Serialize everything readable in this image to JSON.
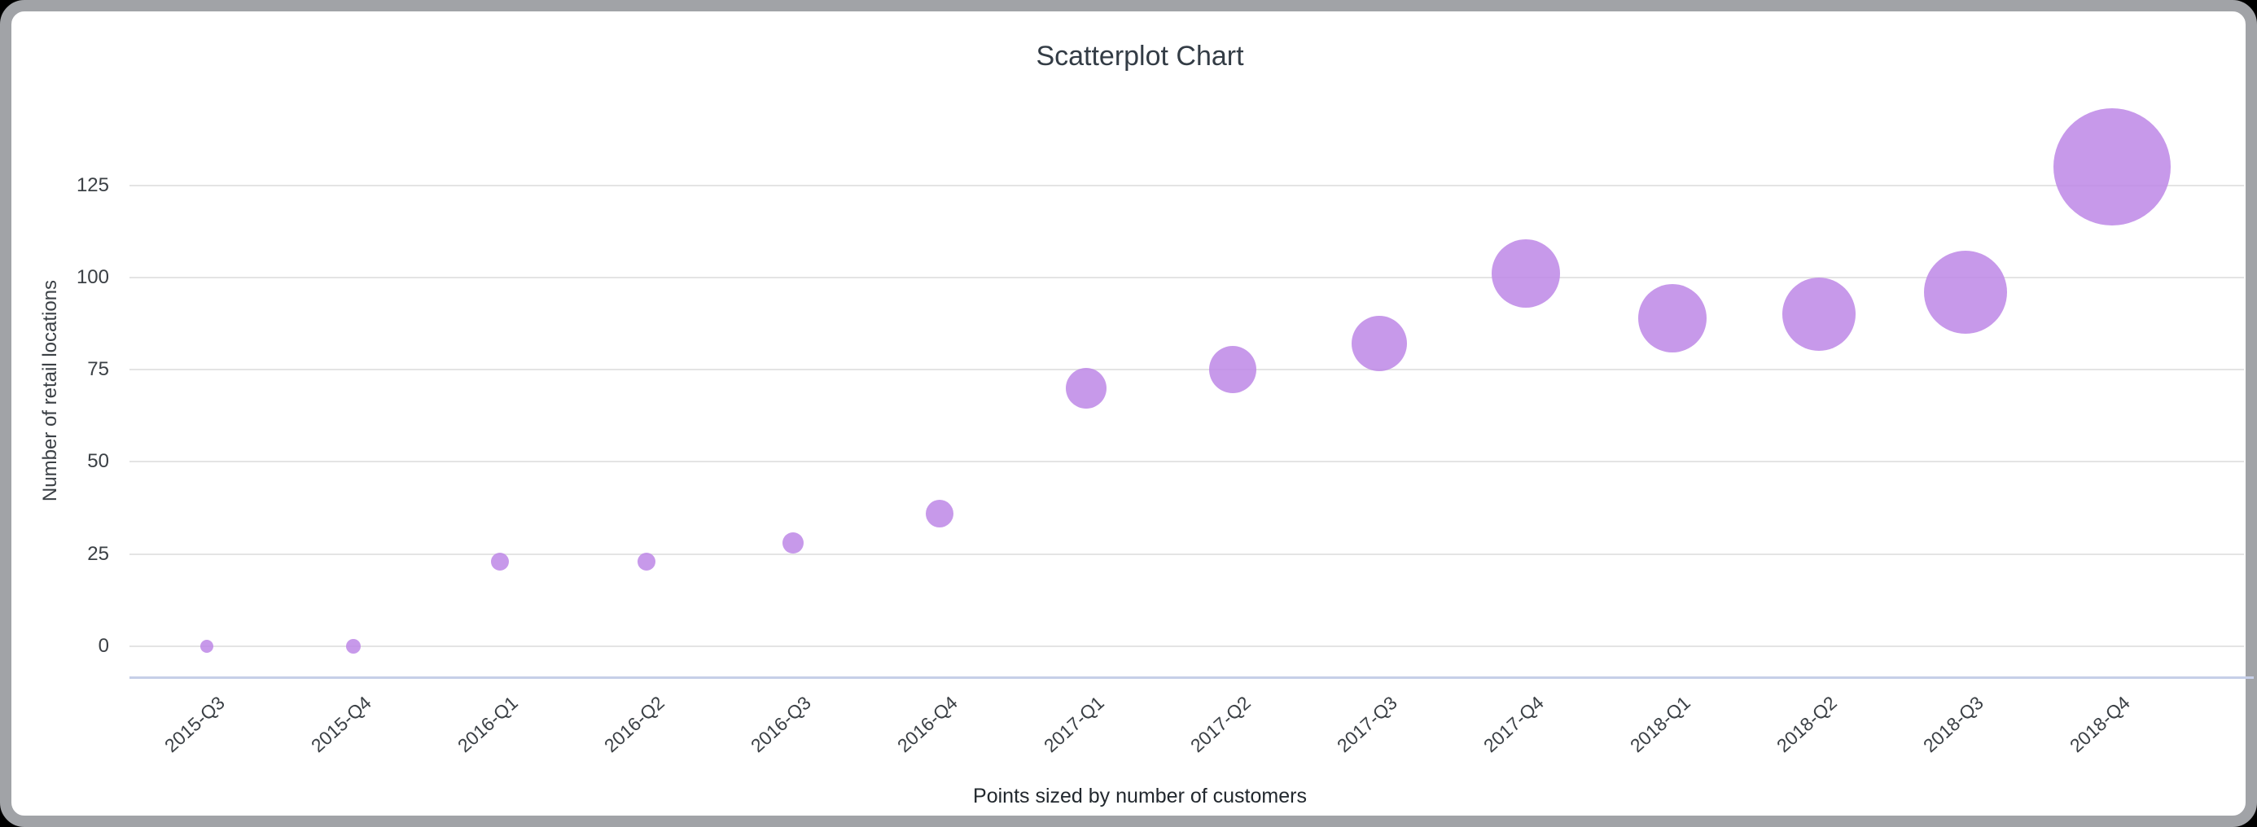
{
  "window": {
    "background_color": "#000000",
    "card_background": "#ffffff",
    "card_border_color": "#a1a3a7"
  },
  "chart_data": {
    "type": "scatter",
    "title": "Scatterplot Chart",
    "caption": "Points sized by number of customers",
    "xlabel": "",
    "ylabel": "Number of retail locations",
    "sized_by": "number of customers",
    "legend": "none",
    "grid": true,
    "categories": [
      "2015-Q3",
      "2015-Q4",
      "2016-Q1",
      "2016-Q2",
      "2016-Q3",
      "2016-Q4",
      "2017-Q1",
      "2017-Q2",
      "2017-Q3",
      "2017-Q4",
      "2018-Q1",
      "2018-Q2",
      "2018-Q3",
      "2018-Q4"
    ],
    "series": [
      {
        "name": "Number of retail locations",
        "values": [
          0,
          0,
          23,
          23,
          28,
          36,
          70,
          75,
          82,
          101,
          89,
          90,
          96,
          130
        ],
        "point_radius_px": [
          8,
          9,
          11,
          11,
          13,
          17,
          25,
          29,
          34,
          42,
          42,
          45,
          51,
          72
        ]
      }
    ],
    "yticks": [
      0,
      25,
      50,
      75,
      100,
      125
    ],
    "ylim": [
      0,
      135
    ],
    "colors": {
      "point_color": "#bd87e6",
      "point_opacity": 0.85,
      "gridline_color": "#e4e4e4",
      "baseline_color": "#c6cfe8",
      "title_color": "#333c45",
      "axis_text_color": "#3b4045"
    }
  }
}
